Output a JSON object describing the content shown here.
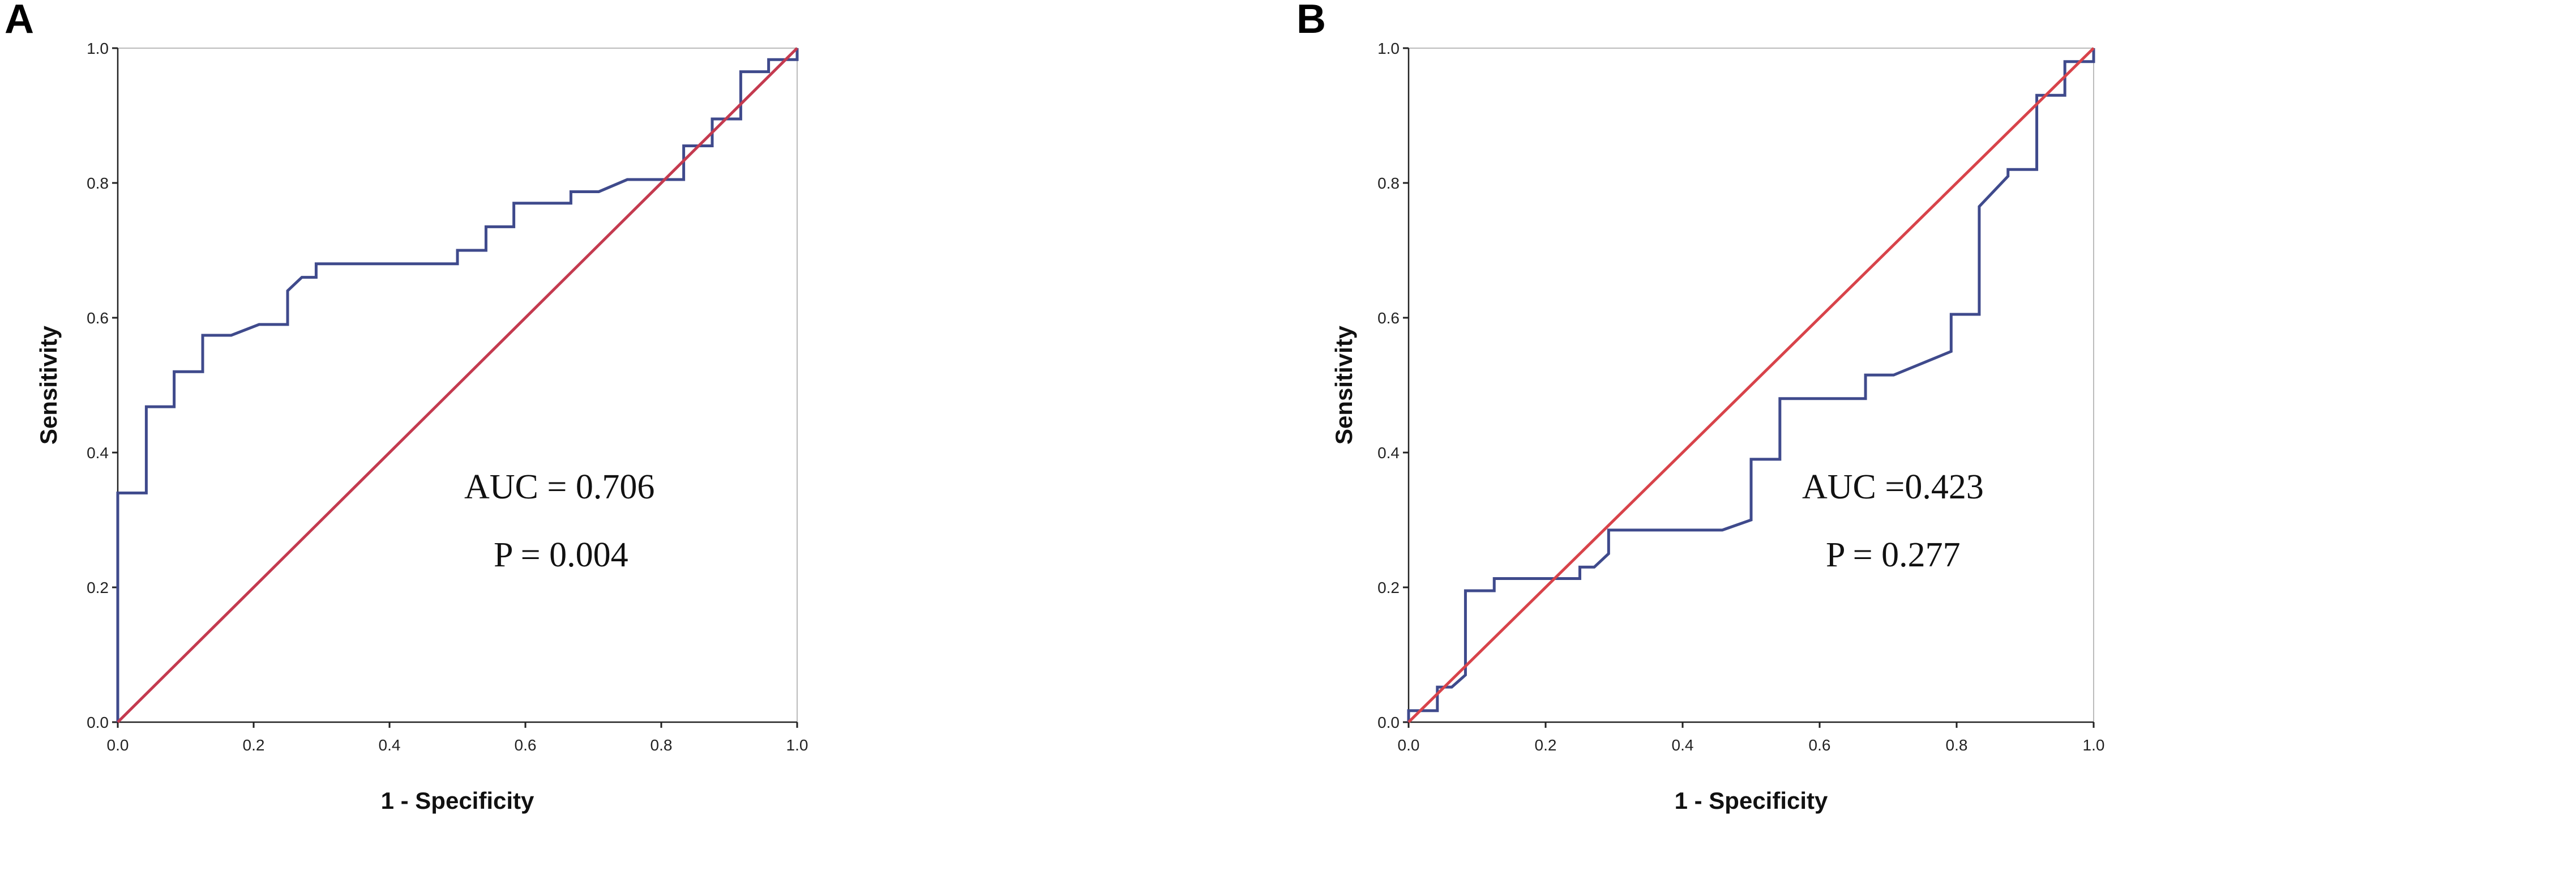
{
  "chart_data": [
    {
      "panel": "A",
      "type": "line",
      "xlabel": "1 - Specificity",
      "ylabel": "Sensitivity",
      "xlim": [
        0,
        1
      ],
      "ylim": [
        0,
        1
      ],
      "x_ticks": [
        "0.0",
        "0.2",
        "0.4",
        "0.6",
        "0.8",
        "1.0"
      ],
      "y_ticks": [
        "0.0",
        "0.2",
        "0.4",
        "0.6",
        "0.8",
        "1.0"
      ],
      "annotations": [
        "AUC = 0.706",
        "P = 0.004"
      ],
      "series": [
        {
          "color": "#3f4a8c",
          "kind": "roc",
          "points": [
            [
              0,
              0
            ],
            [
              0,
              0.34
            ],
            [
              0.042,
              0.34
            ],
            [
              0.042,
              0.468
            ],
            [
              0.083,
              0.468
            ],
            [
              0.083,
              0.52
            ],
            [
              0.125,
              0.52
            ],
            [
              0.125,
              0.574
            ],
            [
              0.167,
              0.574
            ],
            [
              0.208,
              0.59
            ],
            [
              0.25,
              0.59
            ],
            [
              0.25,
              0.64
            ],
            [
              0.271,
              0.66
            ],
            [
              0.292,
              0.66
            ],
            [
              0.292,
              0.68
            ],
            [
              0.5,
              0.68
            ],
            [
              0.5,
              0.7
            ],
            [
              0.542,
              0.7
            ],
            [
              0.542,
              0.735
            ],
            [
              0.583,
              0.735
            ],
            [
              0.583,
              0.77
            ],
            [
              0.667,
              0.77
            ],
            [
              0.667,
              0.787
            ],
            [
              0.708,
              0.787
            ],
            [
              0.75,
              0.805
            ],
            [
              0.833,
              0.805
            ],
            [
              0.833,
              0.855
            ],
            [
              0.875,
              0.855
            ],
            [
              0.875,
              0.895
            ],
            [
              0.917,
              0.895
            ],
            [
              0.917,
              0.965
            ],
            [
              0.958,
              0.965
            ],
            [
              0.958,
              0.983
            ],
            [
              1,
              0.983
            ],
            [
              1,
              1
            ]
          ]
        },
        {
          "color": "#c43a4f",
          "kind": "reference",
          "points": [
            [
              0,
              0
            ],
            [
              1,
              1
            ]
          ]
        }
      ]
    },
    {
      "panel": "B",
      "type": "line",
      "xlabel": "1 - Specificity",
      "ylabel": "Sensitivity",
      "xlim": [
        0,
        1
      ],
      "ylim": [
        0,
        1
      ],
      "x_ticks": [
        "0.0",
        "0.2",
        "0.4",
        "0.6",
        "0.8",
        "1.0"
      ],
      "y_ticks": [
        "0.0",
        "0.2",
        "0.4",
        "0.6",
        "0.8",
        "1.0"
      ],
      "annotations": [
        "AUC =0.423",
        "P = 0.277"
      ],
      "series": [
        {
          "color": "#3f4a8c",
          "kind": "roc",
          "points": [
            [
              0,
              0
            ],
            [
              0,
              0.017
            ],
            [
              0.042,
              0.017
            ],
            [
              0.042,
              0.052
            ],
            [
              0.063,
              0.052
            ],
            [
              0.083,
              0.07
            ],
            [
              0.083,
              0.195
            ],
            [
              0.125,
              0.195
            ],
            [
              0.125,
              0.213
            ],
            [
              0.25,
              0.213
            ],
            [
              0.25,
              0.23
            ],
            [
              0.271,
              0.23
            ],
            [
              0.292,
              0.25
            ],
            [
              0.292,
              0.285
            ],
            [
              0.458,
              0.285
            ],
            [
              0.5,
              0.3
            ],
            [
              0.5,
              0.39
            ],
            [
              0.542,
              0.39
            ],
            [
              0.542,
              0.48
            ],
            [
              0.667,
              0.48
            ],
            [
              0.667,
              0.515
            ],
            [
              0.708,
              0.515
            ],
            [
              0.792,
              0.55
            ],
            [
              0.792,
              0.605
            ],
            [
              0.833,
              0.605
            ],
            [
              0.833,
              0.765
            ],
            [
              0.875,
              0.81
            ],
            [
              0.875,
              0.82
            ],
            [
              0.917,
              0.82
            ],
            [
              0.917,
              0.93
            ],
            [
              0.958,
              0.93
            ],
            [
              0.958,
              0.98
            ],
            [
              1,
              0.98
            ],
            [
              1,
              1
            ]
          ]
        },
        {
          "color": "#d8434a",
          "kind": "reference",
          "points": [
            [
              0,
              0
            ],
            [
              1,
              1
            ]
          ]
        }
      ]
    }
  ]
}
